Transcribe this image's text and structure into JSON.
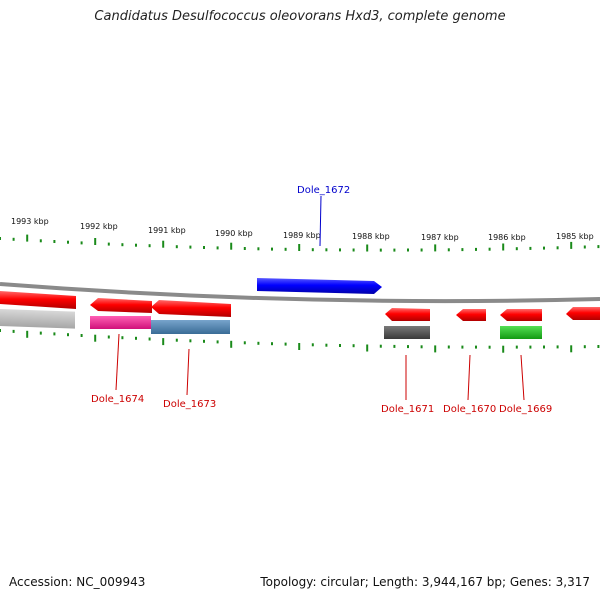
{
  "title": "Candidatus Desulfococcus oleovorans Hxd3, complete genome",
  "accession_text": "Accession: NC_009943",
  "topology_text": "Topology: circular; Length: 3,944,167 bp; Genes: 3,317",
  "ruler_labels": [
    "1993 kbp",
    "1992 kbp",
    "1991 kbp",
    "1990 kbp",
    "1989 kbp",
    "1988 kbp",
    "1987 kbp",
    "1986 kbp",
    "1985 kbp"
  ],
  "gene_labels": [
    {
      "name": "Dole_1672",
      "color": "#0000cc"
    },
    {
      "name": "Dole_1674",
      "color": "#cc0000"
    },
    {
      "name": "Dole_1673",
      "color": "#cc0000"
    },
    {
      "name": "Dole_1671",
      "color": "#cc0000"
    },
    {
      "name": "Dole_1670",
      "color": "#cc0000"
    },
    {
      "name": "Dole_1669",
      "color": "#cc0000"
    }
  ],
  "colors": {
    "cds_red": "#ff0000",
    "gene_blue": "#0000ff",
    "tick_green": "#1a8a1a",
    "backbone_gray": "#8a8a8a",
    "bar_magenta": "#ff1493",
    "bar_steelblue": "#4682b4",
    "bar_darkgray": "#555555",
    "bar_green": "#22cc22",
    "bar_lightgray": "#bdbdbd"
  }
}
